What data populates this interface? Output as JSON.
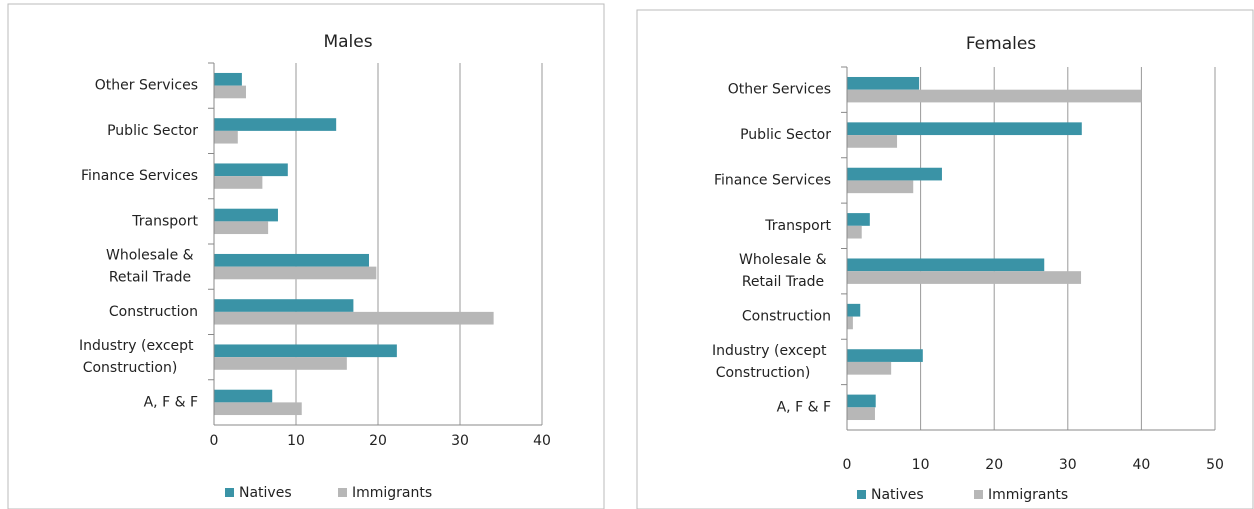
{
  "chart_data": [
    {
      "type": "bar",
      "orientation": "horizontal",
      "title": "Males",
      "categories": [
        "Other Services",
        "Public Sector",
        "Finance Services",
        "Transport",
        "Wholesale & Retail Trade",
        "Construction",
        "Industry (except Construction)",
        "A, F & F"
      ],
      "series": [
        {
          "name": "Natives",
          "color": "#3a93a6",
          "values": [
            3.4,
            14.9,
            9.0,
            7.8,
            18.9,
            17.0,
            22.3,
            7.1
          ]
        },
        {
          "name": "Immigrants",
          "color": "#b7b7b7",
          "values": [
            3.9,
            2.9,
            5.9,
            6.6,
            19.8,
            34.1,
            16.2,
            10.7
          ]
        }
      ],
      "xlim": [
        0,
        40
      ],
      "xticks": [
        0,
        10,
        20,
        30,
        40
      ],
      "grid": true,
      "legend": "bottom"
    },
    {
      "type": "bar",
      "orientation": "horizontal",
      "title": "Females",
      "categories": [
        "Other Services",
        "Public Sector",
        "Finance Services",
        "Transport",
        "Wholesale & Retail Trade",
        "Construction",
        "Industry (except Construction)",
        "A, F & F"
      ],
      "series": [
        {
          "name": "Natives",
          "color": "#3a93a6",
          "values": [
            9.8,
            31.9,
            12.9,
            3.1,
            26.8,
            1.8,
            10.3,
            3.9
          ]
        },
        {
          "name": "Immigrants",
          "color": "#b7b7b7",
          "values": [
            40,
            6.8,
            9.0,
            2.0,
            31.8,
            0.8,
            6.0,
            3.8
          ]
        }
      ],
      "xlim": [
        0,
        50
      ],
      "xticks": [
        0,
        10,
        20,
        30,
        40,
        50
      ],
      "grid": true,
      "legend": "bottom"
    }
  ]
}
